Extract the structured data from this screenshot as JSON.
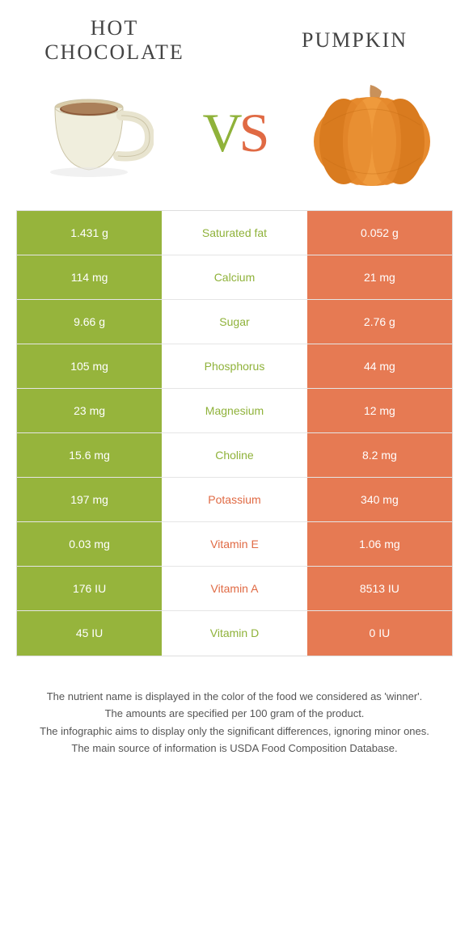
{
  "header": {
    "left_title_line1": "HOT",
    "left_title_line2": "CHOCOLATE",
    "right_title": "PUMPKIN",
    "vs_v": "V",
    "vs_s": "S"
  },
  "colors": {
    "green": "#96b43c",
    "orange": "#e67a53",
    "mid_green": "#8fb23a",
    "mid_orange": "#e06a44",
    "background": "#ffffff",
    "border": "#e5e5e5"
  },
  "rows": [
    {
      "left": "1.431 g",
      "mid": "Saturated fat",
      "right": "0.052 g",
      "winner": "left"
    },
    {
      "left": "114 mg",
      "mid": "Calcium",
      "right": "21 mg",
      "winner": "left"
    },
    {
      "left": "9.66 g",
      "mid": "Sugar",
      "right": "2.76 g",
      "winner": "left"
    },
    {
      "left": "105 mg",
      "mid": "Phosphorus",
      "right": "44 mg",
      "winner": "left"
    },
    {
      "left": "23 mg",
      "mid": "Magnesium",
      "right": "12 mg",
      "winner": "left"
    },
    {
      "left": "15.6 mg",
      "mid": "Choline",
      "right": "8.2 mg",
      "winner": "left"
    },
    {
      "left": "197 mg",
      "mid": "Potassium",
      "right": "340 mg",
      "winner": "right"
    },
    {
      "left": "0.03 mg",
      "mid": "Vitamin E",
      "right": "1.06 mg",
      "winner": "right"
    },
    {
      "left": "176 IU",
      "mid": "Vitamin A",
      "right": "8513 IU",
      "winner": "right"
    },
    {
      "left": "45 IU",
      "mid": "Vitamin D",
      "right": "0 IU",
      "winner": "left"
    }
  ],
  "footer": {
    "line1": "The nutrient name is displayed in the color of the food we considered as 'winner'.",
    "line2": "The amounts are specified per 100 gram of the product.",
    "line3": "The infographic aims to display only the significant differences, ignoring minor ones.",
    "line4": "The main source of information is USDA Food Composition Database."
  }
}
